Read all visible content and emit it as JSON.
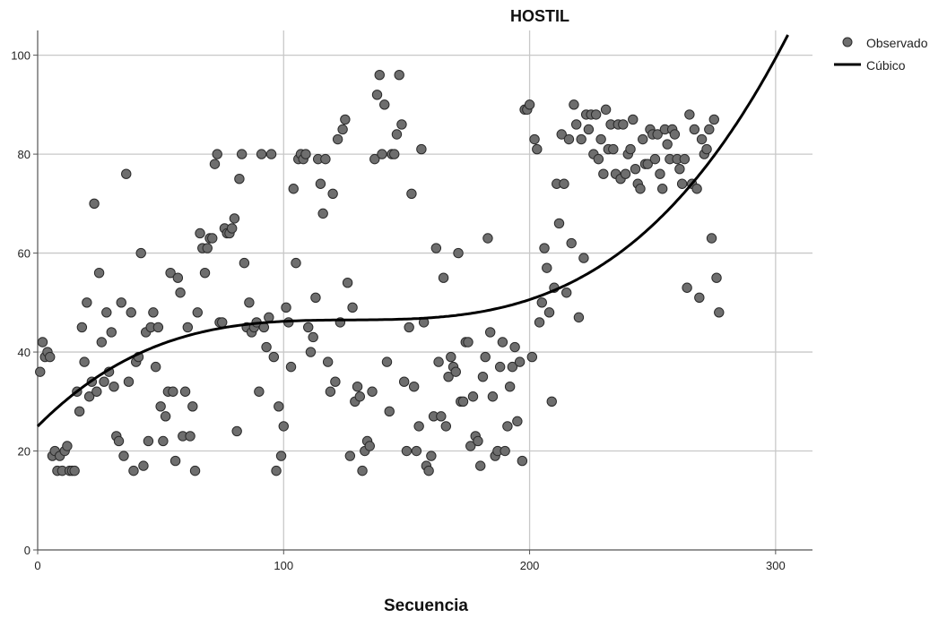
{
  "chart_data": {
    "type": "scatter",
    "title": "HOSTIL",
    "xlabel": "Secuencia",
    "ylabel": "",
    "xlim": [
      0,
      315
    ],
    "ylim": [
      0,
      105
    ],
    "x_ticks": [
      0,
      100,
      200,
      300
    ],
    "y_ticks": [
      0,
      20,
      40,
      60,
      80,
      100
    ],
    "grid": true,
    "legend": "top-right",
    "colors": {
      "point_fill": "#6e6e6e",
      "point_stroke": "#2a2a2a",
      "curve": "#000000",
      "grid": "#c8c8c8",
      "axis": "#555555"
    },
    "series": [
      {
        "name": "Observado",
        "kind": "scatter",
        "points": [
          [
            1,
            36
          ],
          [
            2,
            42
          ],
          [
            3,
            39
          ],
          [
            4,
            40
          ],
          [
            5,
            39
          ],
          [
            6,
            19
          ],
          [
            7,
            20
          ],
          [
            8,
            16
          ],
          [
            9,
            19
          ],
          [
            10,
            16
          ],
          [
            11,
            20
          ],
          [
            12,
            21
          ],
          [
            13,
            16
          ],
          [
            14,
            16
          ],
          [
            15,
            16
          ],
          [
            16,
            32
          ],
          [
            17,
            28
          ],
          [
            18,
            45
          ],
          [
            19,
            38
          ],
          [
            20,
            50
          ],
          [
            21,
            31
          ],
          [
            22,
            34
          ],
          [
            23,
            70
          ],
          [
            24,
            32
          ],
          [
            25,
            56
          ],
          [
            26,
            42
          ],
          [
            27,
            34
          ],
          [
            28,
            48
          ],
          [
            29,
            36
          ],
          [
            30,
            44
          ],
          [
            31,
            33
          ],
          [
            32,
            23
          ],
          [
            33,
            22
          ],
          [
            34,
            50
          ],
          [
            35,
            19
          ],
          [
            36,
            76
          ],
          [
            37,
            34
          ],
          [
            38,
            48
          ],
          [
            39,
            16
          ],
          [
            40,
            38
          ],
          [
            41,
            39
          ],
          [
            42,
            60
          ],
          [
            43,
            17
          ],
          [
            44,
            44
          ],
          [
            45,
            22
          ],
          [
            46,
            45
          ],
          [
            47,
            48
          ],
          [
            48,
            37
          ],
          [
            49,
            45
          ],
          [
            50,
            29
          ],
          [
            51,
            22
          ],
          [
            52,
            27
          ],
          [
            53,
            32
          ],
          [
            54,
            56
          ],
          [
            55,
            32
          ],
          [
            56,
            18
          ],
          [
            57,
            55
          ],
          [
            58,
            52
          ],
          [
            59,
            23
          ],
          [
            60,
            32
          ],
          [
            61,
            45
          ],
          [
            62,
            23
          ],
          [
            63,
            29
          ],
          [
            64,
            16
          ],
          [
            65,
            48
          ],
          [
            66,
            64
          ],
          [
            67,
            61
          ],
          [
            68,
            56
          ],
          [
            69,
            61
          ],
          [
            70,
            63
          ],
          [
            71,
            63
          ],
          [
            72,
            78
          ],
          [
            73,
            80
          ],
          [
            74,
            46
          ],
          [
            75,
            46
          ],
          [
            76,
            65
          ],
          [
            77,
            64
          ],
          [
            78,
            64
          ],
          [
            79,
            65
          ],
          [
            80,
            67
          ],
          [
            81,
            24
          ],
          [
            82,
            75
          ],
          [
            83,
            80
          ],
          [
            84,
            58
          ],
          [
            85,
            45
          ],
          [
            86,
            50
          ],
          [
            87,
            44
          ],
          [
            88,
            45
          ],
          [
            89,
            46
          ],
          [
            90,
            32
          ],
          [
            91,
            80
          ],
          [
            92,
            45
          ],
          [
            93,
            41
          ],
          [
            94,
            47
          ],
          [
            95,
            80
          ],
          [
            96,
            39
          ],
          [
            97,
            16
          ],
          [
            98,
            29
          ],
          [
            99,
            19
          ],
          [
            100,
            25
          ],
          [
            101,
            49
          ],
          [
            102,
            46
          ],
          [
            103,
            37
          ],
          [
            104,
            73
          ],
          [
            105,
            58
          ],
          [
            106,
            79
          ],
          [
            107,
            80
          ],
          [
            108,
            79
          ],
          [
            109,
            80
          ],
          [
            110,
            45
          ],
          [
            111,
            40
          ],
          [
            112,
            43
          ],
          [
            113,
            51
          ],
          [
            114,
            79
          ],
          [
            115,
            74
          ],
          [
            116,
            68
          ],
          [
            117,
            79
          ],
          [
            118,
            38
          ],
          [
            119,
            32
          ],
          [
            120,
            72
          ],
          [
            121,
            34
          ],
          [
            122,
            83
          ],
          [
            123,
            46
          ],
          [
            124,
            85
          ],
          [
            125,
            87
          ],
          [
            126,
            54
          ],
          [
            127,
            19
          ],
          [
            128,
            49
          ],
          [
            129,
            30
          ],
          [
            130,
            33
          ],
          [
            131,
            31
          ],
          [
            132,
            16
          ],
          [
            133,
            20
          ],
          [
            134,
            22
          ],
          [
            135,
            21
          ],
          [
            136,
            32
          ],
          [
            137,
            79
          ],
          [
            138,
            92
          ],
          [
            139,
            96
          ],
          [
            140,
            80
          ],
          [
            141,
            90
          ],
          [
            142,
            38
          ],
          [
            143,
            28
          ],
          [
            144,
            80
          ],
          [
            145,
            80
          ],
          [
            146,
            84
          ],
          [
            147,
            96
          ],
          [
            148,
            86
          ],
          [
            149,
            34
          ],
          [
            150,
            20
          ],
          [
            151,
            45
          ],
          [
            152,
            72
          ],
          [
            153,
            33
          ],
          [
            154,
            20
          ],
          [
            155,
            25
          ],
          [
            156,
            81
          ],
          [
            157,
            46
          ],
          [
            158,
            17
          ],
          [
            159,
            16
          ],
          [
            160,
            19
          ],
          [
            161,
            27
          ],
          [
            162,
            61
          ],
          [
            163,
            38
          ],
          [
            164,
            27
          ],
          [
            165,
            55
          ],
          [
            166,
            25
          ],
          [
            167,
            35
          ],
          [
            168,
            39
          ],
          [
            169,
            37
          ],
          [
            170,
            36
          ],
          [
            171,
            60
          ],
          [
            172,
            30
          ],
          [
            173,
            30
          ],
          [
            174,
            42
          ],
          [
            175,
            42
          ],
          [
            176,
            21
          ],
          [
            177,
            31
          ],
          [
            178,
            23
          ],
          [
            179,
            22
          ],
          [
            180,
            17
          ],
          [
            181,
            35
          ],
          [
            182,
            39
          ],
          [
            183,
            63
          ],
          [
            184,
            44
          ],
          [
            185,
            31
          ],
          [
            186,
            19
          ],
          [
            187,
            20
          ],
          [
            188,
            37
          ],
          [
            189,
            42
          ],
          [
            190,
            20
          ],
          [
            191,
            25
          ],
          [
            192,
            33
          ],
          [
            193,
            37
          ],
          [
            194,
            41
          ],
          [
            195,
            26
          ],
          [
            196,
            38
          ],
          [
            197,
            18
          ],
          [
            198,
            89
          ],
          [
            199,
            89
          ],
          [
            200,
            90
          ],
          [
            201,
            39
          ],
          [
            202,
            83
          ],
          [
            203,
            81
          ],
          [
            204,
            46
          ],
          [
            205,
            50
          ],
          [
            206,
            61
          ],
          [
            207,
            57
          ],
          [
            208,
            48
          ],
          [
            209,
            30
          ],
          [
            210,
            53
          ],
          [
            211,
            74
          ],
          [
            212,
            66
          ],
          [
            213,
            84
          ],
          [
            214,
            74
          ],
          [
            215,
            52
          ],
          [
            216,
            83
          ],
          [
            217,
            62
          ],
          [
            218,
            90
          ],
          [
            219,
            86
          ],
          [
            220,
            47
          ],
          [
            221,
            83
          ],
          [
            222,
            59
          ],
          [
            223,
            88
          ],
          [
            224,
            85
          ],
          [
            225,
            88
          ],
          [
            226,
            80
          ],
          [
            227,
            88
          ],
          [
            228,
            79
          ],
          [
            229,
            83
          ],
          [
            230,
            76
          ],
          [
            231,
            89
          ],
          [
            232,
            81
          ],
          [
            233,
            86
          ],
          [
            234,
            81
          ],
          [
            235,
            76
          ],
          [
            236,
            86
          ],
          [
            237,
            75
          ],
          [
            238,
            86
          ],
          [
            239,
            76
          ],
          [
            240,
            80
          ],
          [
            241,
            81
          ],
          [
            242,
            87
          ],
          [
            243,
            77
          ],
          [
            244,
            74
          ],
          [
            245,
            73
          ],
          [
            246,
            83
          ],
          [
            247,
            78
          ],
          [
            248,
            78
          ],
          [
            249,
            85
          ],
          [
            250,
            84
          ],
          [
            251,
            79
          ],
          [
            252,
            84
          ],
          [
            253,
            76
          ],
          [
            254,
            73
          ],
          [
            255,
            85
          ],
          [
            256,
            82
          ],
          [
            257,
            79
          ],
          [
            258,
            85
          ],
          [
            259,
            84
          ],
          [
            260,
            79
          ],
          [
            261,
            77
          ],
          [
            262,
            74
          ],
          [
            263,
            79
          ],
          [
            264,
            53
          ],
          [
            265,
            88
          ],
          [
            266,
            74
          ],
          [
            267,
            85
          ],
          [
            268,
            73
          ],
          [
            269,
            51
          ],
          [
            270,
            83
          ],
          [
            271,
            80
          ],
          [
            272,
            81
          ],
          [
            273,
            85
          ],
          [
            274,
            63
          ],
          [
            275,
            87
          ],
          [
            276,
            55
          ],
          [
            277,
            48
          ]
        ]
      },
      {
        "name": "Cúbico",
        "kind": "curve",
        "model": "cubic",
        "coefficients": [
          25.0,
          0.5,
          -0.0039,
          1.02e-05
        ]
      }
    ]
  }
}
